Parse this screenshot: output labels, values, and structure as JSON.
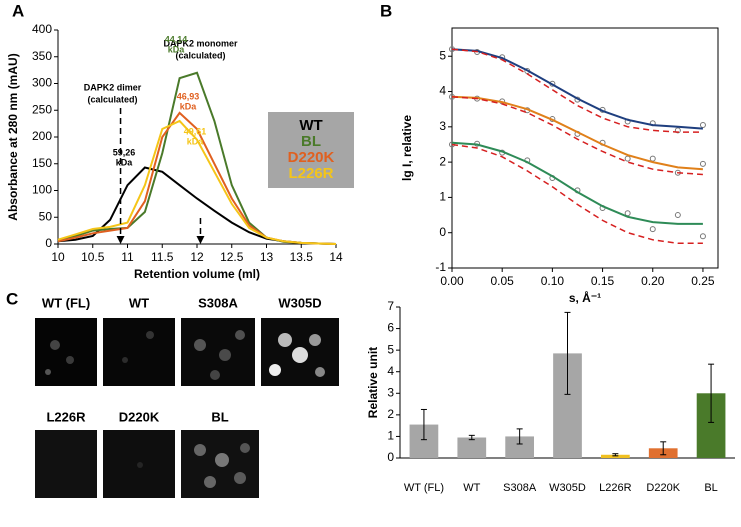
{
  "panels": [
    "A",
    "B",
    "C"
  ],
  "images": {
    "labels": [
      "WT (FL)",
      "WT",
      "S308A",
      "W305D",
      "L226R",
      "D220K",
      "BL"
    ]
  },
  "chart_data": [
    {
      "type": "line",
      "xlabel": "Retention volume (ml)",
      "ylabel": "Absorbance at 280 nm (mAU)",
      "x": [
        10,
        10.25,
        10.5,
        10.75,
        11,
        11.25,
        11.5,
        11.75,
        12,
        12.25,
        12.5,
        12.75,
        13,
        13.25,
        13.5,
        13.75,
        14
      ],
      "xlim": [
        10,
        14
      ],
      "xticks": [
        10,
        10.5,
        11,
        11.5,
        12,
        12.5,
        13,
        13.5,
        14
      ],
      "ylim": [
        0,
        400
      ],
      "yticks": [
        0,
        50,
        100,
        150,
        200,
        250,
        300,
        350,
        400
      ],
      "legend": "right",
      "series": [
        {
          "name": "WT",
          "color": "#000000",
          "values": [
            5,
            8,
            15,
            45,
            110,
            143,
            135,
            110,
            85,
            62,
            40,
            22,
            10,
            5,
            2,
            1,
            0
          ]
        },
        {
          "name": "BL",
          "color": "#4a7a2a",
          "values": [
            5,
            15,
            25,
            28,
            30,
            60,
            170,
            310,
            320,
            230,
            110,
            40,
            12,
            4,
            2,
            1,
            0
          ]
        },
        {
          "name": "D220K",
          "color": "#e06020",
          "values": [
            5,
            12,
            20,
            25,
            30,
            80,
            200,
            245,
            215,
            150,
            85,
            35,
            12,
            5,
            2,
            1,
            0
          ]
        },
        {
          "name": "L226R",
          "color": "#f5c518",
          "values": [
            8,
            18,
            28,
            32,
            40,
            110,
            215,
            230,
            195,
            135,
            75,
            30,
            12,
            5,
            2,
            1,
            0
          ]
        }
      ],
      "annotations": [
        {
          "text": [
            "59,26",
            "kDa"
          ],
          "color": "#000000"
        },
        {
          "text": [
            "44,14",
            "kDa"
          ],
          "color": "#4a7a2a"
        },
        {
          "text": [
            "46,93",
            "kDa"
          ],
          "color": "#e06020"
        },
        {
          "text": [
            "49,61",
            "kDa"
          ],
          "color": "#f5c518"
        }
      ],
      "markers": [
        {
          "x": 10.9,
          "label": [
            "DAPK2 dimer",
            "(calculated)"
          ]
        },
        {
          "x": 12.05,
          "label": [
            "DAPK2 monomer",
            "(calculated)"
          ]
        }
      ]
    },
    {
      "type": "line",
      "xlabel": "s, Å⁻¹",
      "ylabel": "lg I, relative",
      "x": [
        0,
        0.025,
        0.05,
        0.075,
        0.1,
        0.125,
        0.15,
        0.175,
        0.2,
        0.225,
        0.25
      ],
      "xlim": [
        0,
        0.265
      ],
      "xticks": [
        {
          "value": 0,
          "label": "0.00"
        },
        {
          "value": 0.05,
          "label": "0.05"
        },
        {
          "value": 0.1,
          "label": "0.10"
        },
        {
          "value": 0.15,
          "label": "0.15"
        },
        {
          "value": 0.2,
          "label": "0.20"
        },
        {
          "value": 0.25,
          "label": "0.25"
        }
      ],
      "ylim": [
        -1,
        5.8
      ],
      "yticks": [
        -1,
        0,
        1,
        2,
        3,
        4,
        5
      ],
      "series": [
        {
          "kind": "scatter",
          "color": "#777777",
          "values": [
            5.2,
            5.12,
            4.97,
            4.58,
            4.22,
            3.77,
            3.48,
            3.15,
            3.1,
            2.9,
            3.05
          ]
        },
        {
          "kind": "scatter",
          "color": "#777777",
          "values": [
            3.85,
            3.8,
            3.72,
            3.47,
            3.22,
            2.8,
            2.55,
            2.1,
            2.1,
            1.7,
            1.95
          ]
        },
        {
          "kind": "scatter",
          "color": "#777777",
          "values": [
            2.5,
            2.52,
            2.27,
            2.05,
            1.55,
            1.2,
            0.7,
            0.55,
            0.1,
            0.5,
            -0.1
          ]
        },
        {
          "kind": "line",
          "color": "#1f3f7f",
          "values": [
            5.2,
            5.15,
            4.95,
            4.6,
            4.2,
            3.8,
            3.45,
            3.2,
            3.05,
            3.0,
            2.95
          ]
        },
        {
          "kind": "line",
          "color": "#e0801a",
          "values": [
            3.85,
            3.82,
            3.7,
            3.5,
            3.2,
            2.85,
            2.5,
            2.2,
            2.0,
            1.85,
            1.8
          ]
        },
        {
          "kind": "line",
          "color": "#2e8b57",
          "values": [
            2.55,
            2.5,
            2.3,
            2.0,
            1.6,
            1.15,
            0.75,
            0.45,
            0.3,
            0.25,
            0.25
          ]
        },
        {
          "kind": "line",
          "dash": true,
          "color": "#d62020",
          "values": [
            5.2,
            5.13,
            4.9,
            4.5,
            4.05,
            3.6,
            3.25,
            3.0,
            2.9,
            2.85,
            2.85
          ]
        },
        {
          "kind": "line",
          "dash": true,
          "color": "#d62020",
          "values": [
            3.85,
            3.8,
            3.65,
            3.4,
            3.05,
            2.65,
            2.3,
            2.0,
            1.8,
            1.7,
            1.65
          ]
        },
        {
          "kind": "line",
          "dash": true,
          "color": "#d62020",
          "values": [
            2.5,
            2.4,
            2.15,
            1.75,
            1.3,
            0.8,
            0.35,
            0.0,
            -0.2,
            -0.3,
            -0.3
          ]
        }
      ]
    },
    {
      "type": "bar",
      "ylabel": "Relative unit",
      "categories": [
        "WT (FL)",
        "WT",
        "S308A",
        "W305D",
        "L226R",
        "D220K",
        "BL"
      ],
      "values": [
        1.55,
        0.95,
        1.0,
        4.85,
        0.15,
        0.45,
        3.0
      ],
      "errors": [
        0.7,
        0.1,
        0.35,
        1.9,
        0.05,
        0.3,
        1.35
      ],
      "colors": [
        "#a6a6a6",
        "#a6a6a6",
        "#a6a6a6",
        "#a6a6a6",
        "#f0c020",
        "#e07030",
        "#4a7a2a"
      ],
      "ylim": [
        0,
        7
      ],
      "yticks": [
        0,
        1,
        2,
        3,
        4,
        5,
        6,
        7
      ]
    }
  ]
}
